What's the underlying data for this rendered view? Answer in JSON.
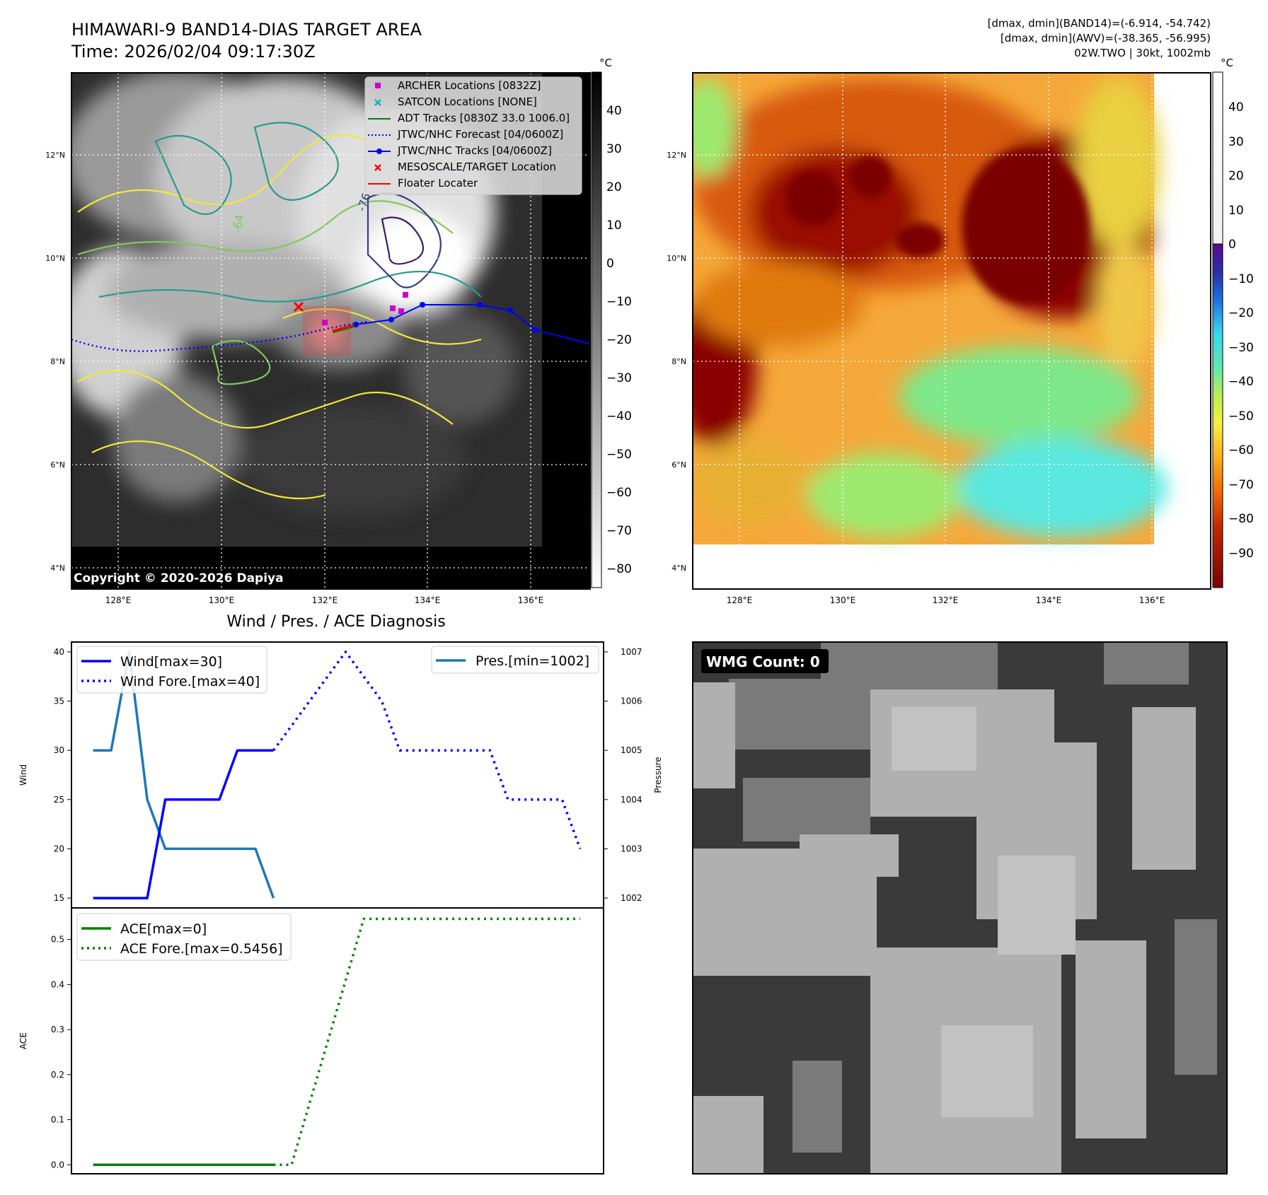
{
  "header": {
    "title_line1": "HIMAWARI-9 BAND14-DIAS TARGET AREA",
    "title_line2": "Time: 2026/02/04 09:17:30Z",
    "info_line1": "[dmax, dmin](BAND14)=(-6.914, -54.742)",
    "info_line2": "[dmax, dmin](AWV)=(-38.365, -56.995)",
    "info_line3": "02W.TWO | 30kt, 1002mb"
  },
  "maps": {
    "lon_ticks": [
      "128°E",
      "130°E",
      "132°E",
      "134°E",
      "136°E"
    ],
    "lat_ticks": [
      "12°N",
      "10°N",
      "8°N",
      "6°N",
      "4°N"
    ],
    "copyright": "Copyright © 2020-2026 Dapiya",
    "contour_label": "-64",
    "contour_label2": "-76",
    "left_colorbar": {
      "unit": "°C",
      "ticks": [
        "40",
        "30",
        "20",
        "10",
        "0",
        "−10",
        "−20",
        "−30",
        "−40",
        "−50",
        "−60",
        "−70",
        "−80"
      ]
    },
    "right_colorbar": {
      "unit": "°C",
      "ticks": [
        "40",
        "30",
        "20",
        "10",
        "0",
        "−10",
        "−20",
        "−30",
        "−40",
        "−50",
        "−60",
        "−70",
        "−80",
        "−90"
      ]
    },
    "legend": [
      "ARCHER Locations [0832Z]",
      "SATCON Locations [NONE]",
      "ADT Tracks [0830Z 33.0 1006.0]",
      "JTWC/NHC Forecast [04/0600Z]",
      "JTWC/NHC Tracks [04/0600Z]",
      "MESOSCALE/TARGET Location",
      "Floater Locater"
    ]
  },
  "wmg": {
    "label": "WMG Count: 0"
  },
  "colors": {
    "wind": "#0000ff",
    "pressure": "#1f77b4",
    "ace": "#008000",
    "archer": "#cc00cc",
    "satcon": "#17b0b0",
    "mesoscale": "#ff0000"
  },
  "chart_data": [
    {
      "type": "line",
      "title": "Wind / Pres. / ACE Diagnosis",
      "ylabel": "Wind",
      "ylabel_right": "Pressure",
      "ylim": [
        14,
        41
      ],
      "ylim_right": [
        1001.8,
        1007.2
      ],
      "yticks": [
        15,
        20,
        25,
        30,
        35,
        40
      ],
      "yticks_right": [
        1002,
        1003,
        1004,
        1005,
        1006,
        1007
      ],
      "legend_left": [
        "Wind[max=30]",
        "Wind Fore.[max=40]"
      ],
      "legend_right": [
        "Pres.[min=1002]"
      ],
      "series": [
        {
          "name": "Wind[max=30]",
          "x": [
            0,
            1,
            2,
            3,
            4,
            5,
            6,
            7,
            8,
            9,
            10
          ],
          "values": [
            15,
            15,
            15,
            15,
            25,
            25,
            25,
            25,
            30,
            30,
            30
          ]
        },
        {
          "name": "Wind Fore.[max=40]",
          "x": [
            10,
            11,
            12,
            13,
            14,
            15,
            16,
            17,
            18,
            19,
            20,
            21,
            22,
            23,
            24,
            25,
            26,
            27
          ],
          "values": [
            30,
            32.5,
            35,
            37.5,
            40,
            37.5,
            35,
            30,
            30,
            30,
            30,
            30,
            30,
            25,
            25,
            25,
            25,
            20
          ]
        },
        {
          "name": "Pres.[min=1002]",
          "x": [
            0,
            1,
            2,
            3,
            4,
            5,
            6,
            7,
            8,
            9,
            10
          ],
          "values": [
            1005,
            1005,
            1007,
            1004,
            1003,
            1003,
            1003,
            1003,
            1003,
            1003,
            1002
          ]
        }
      ]
    },
    {
      "type": "line",
      "ylabel": "ACE",
      "ylim": [
        -0.02,
        0.57
      ],
      "yticks": [
        0.0,
        0.1,
        0.2,
        0.3,
        0.4,
        0.5
      ],
      "ytick_labels": [
        "0.0",
        "0.1",
        "0.2",
        "0.3",
        "0.4",
        "0.5"
      ],
      "legend": [
        "ACE[max=0]",
        "ACE Fore.[max=0.5456]"
      ],
      "series": [
        {
          "name": "ACE[max=0]",
          "x": [
            0,
            10
          ],
          "values": [
            0,
            0
          ]
        },
        {
          "name": "ACE Fore.[max=0.5456]",
          "x": [
            10,
            11,
            15,
            27
          ],
          "values": [
            0,
            0,
            0.5456,
            0.5456
          ]
        }
      ]
    }
  ]
}
